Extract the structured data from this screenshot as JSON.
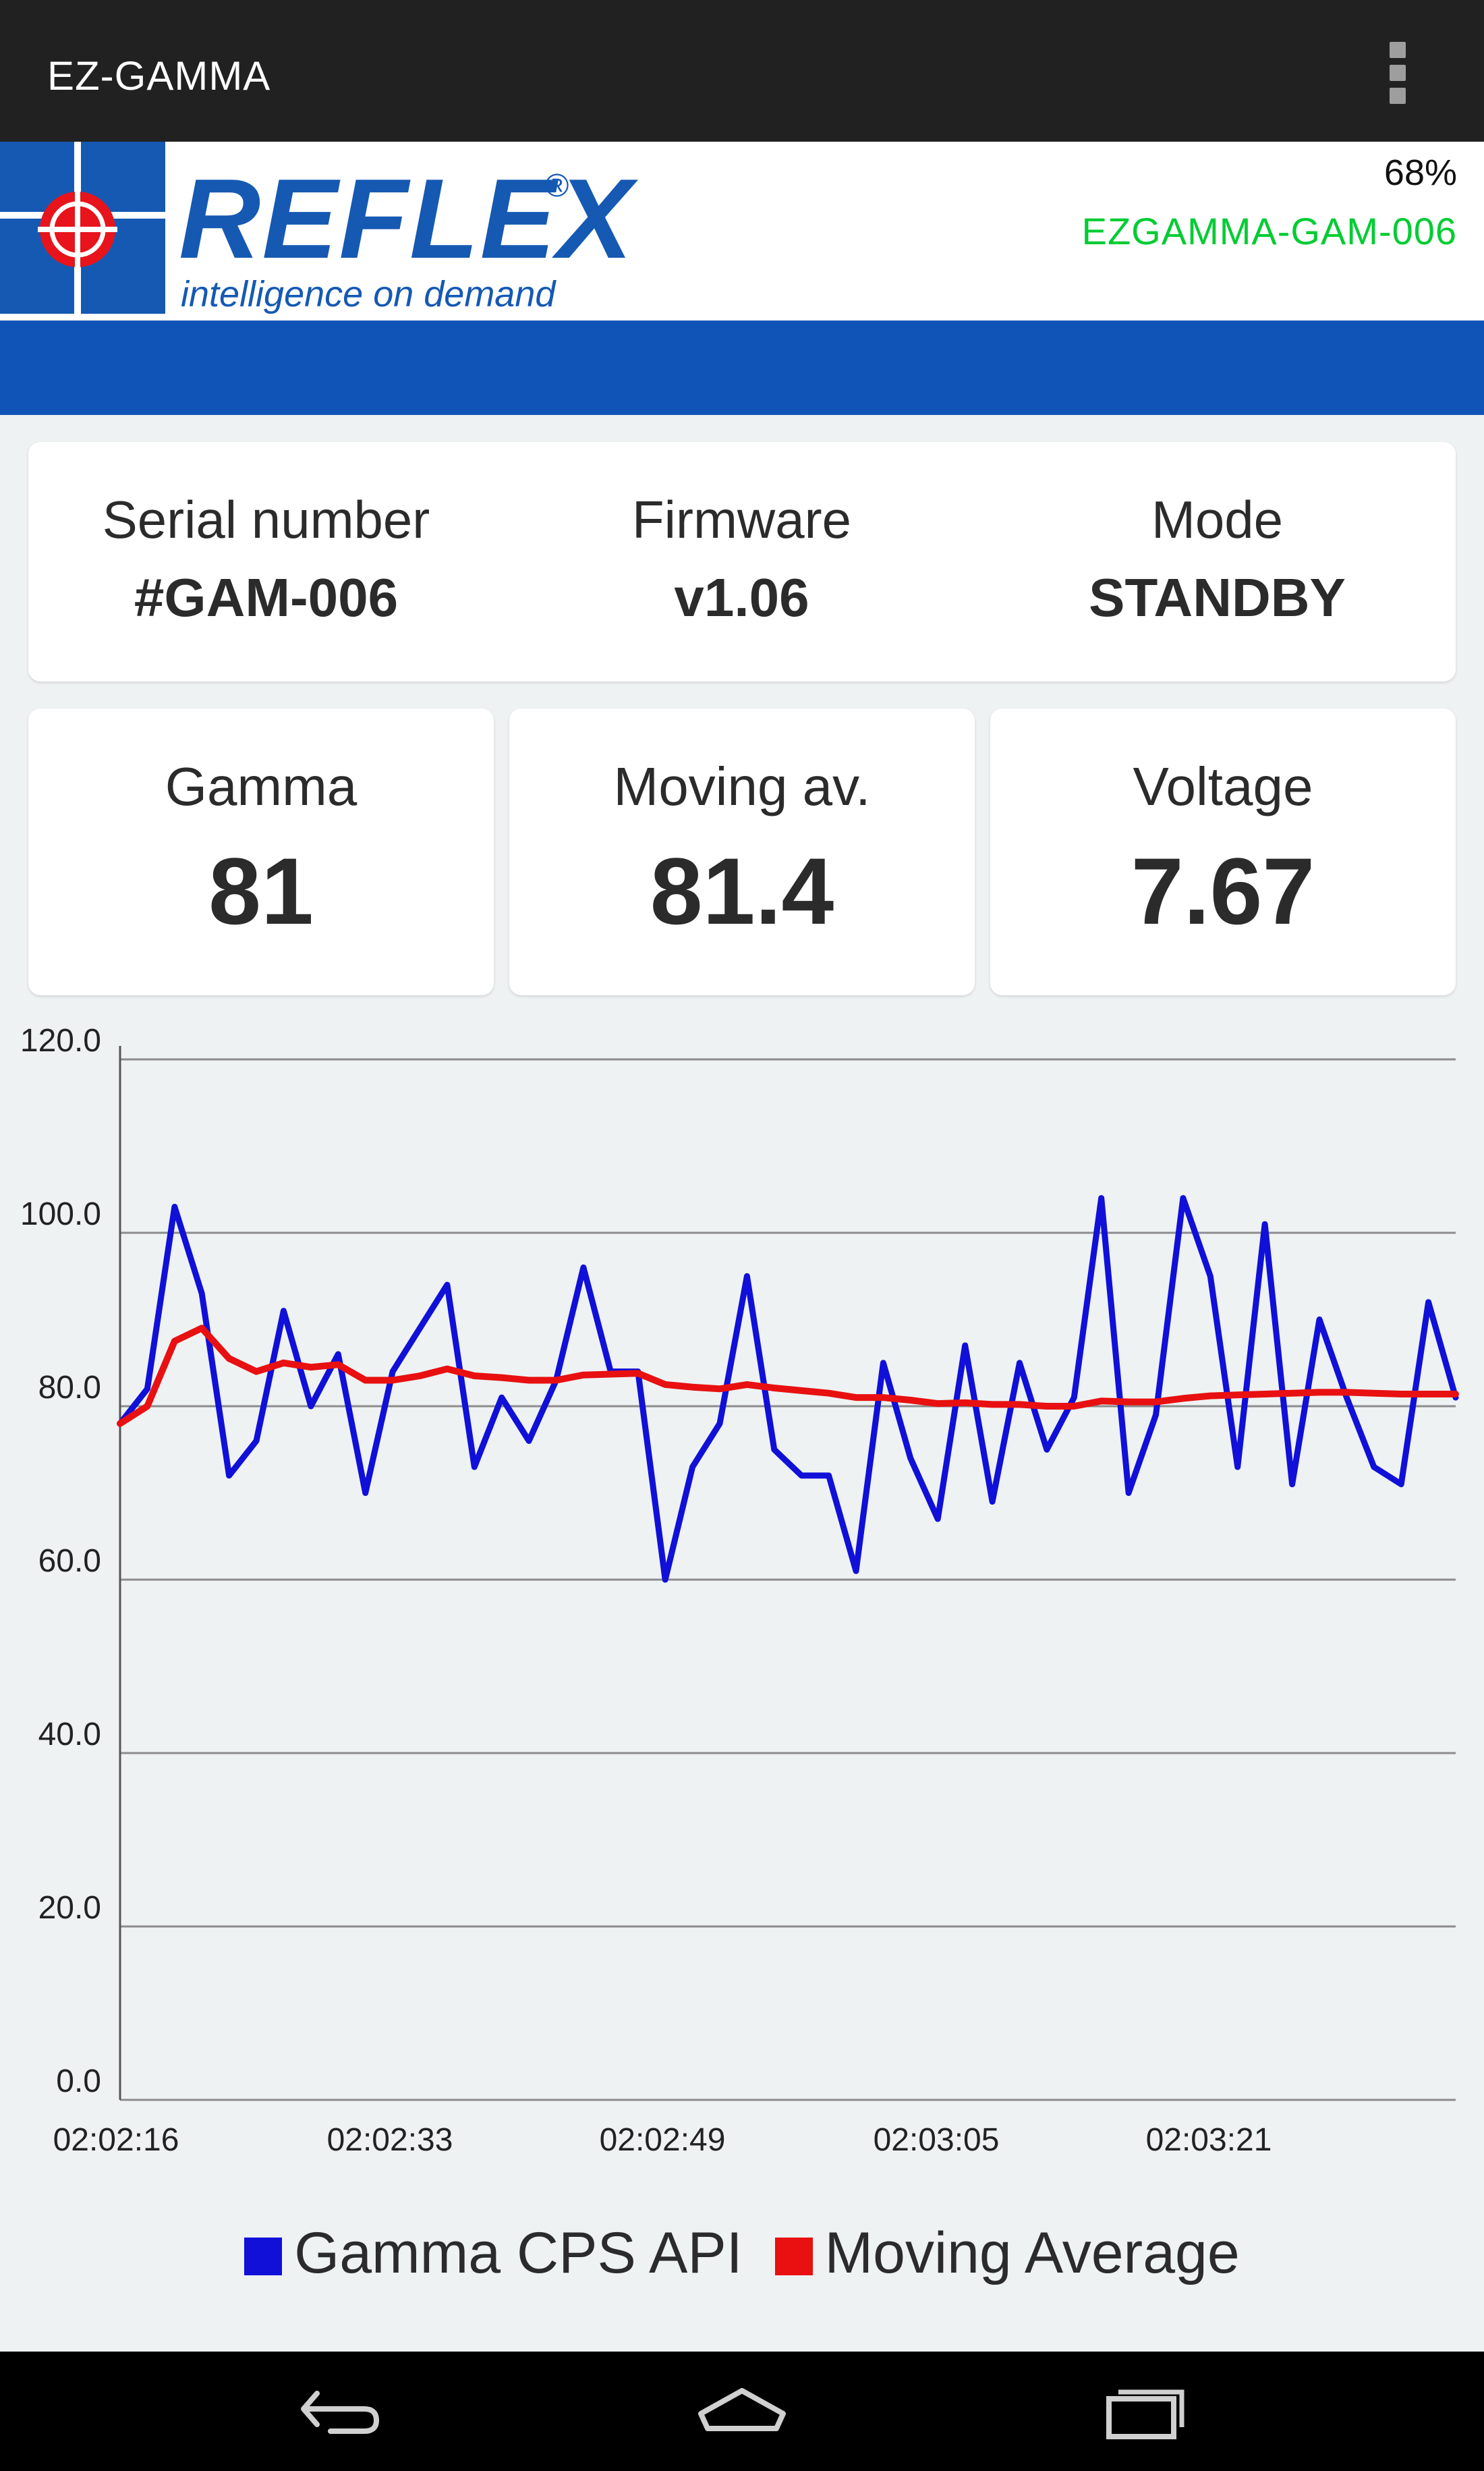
{
  "appbar": {
    "title": "EZ-GAMMA",
    "menu_icon": "overflow-menu-icon"
  },
  "brand": {
    "logo_text": "REFLEX",
    "logo_reg": "®",
    "tagline": "intelligence on demand",
    "battery": "68%",
    "device_name": "EZGAMMA-GAM-006",
    "colors": {
      "logo_blue": "#1559b3",
      "band_blue": "#1154b8",
      "device_green": "#00cc33"
    }
  },
  "info": [
    {
      "label": "Serial number",
      "value": "#GAM-006"
    },
    {
      "label": "Firmware",
      "value": "v1.06"
    },
    {
      "label": "Mode",
      "value": "STANDBY"
    }
  ],
  "metrics": [
    {
      "label": "Gamma",
      "value": "81"
    },
    {
      "label": "Moving av.",
      "value": "81.4"
    },
    {
      "label": "Voltage",
      "value": "7.67"
    }
  ],
  "chart_data": {
    "type": "line",
    "ylim": [
      0,
      120
    ],
    "yticks": [
      "0.0",
      "20.0",
      "40.0",
      "60.0",
      "80.0",
      "100.0",
      "120.0"
    ],
    "xticks": [
      "02:02:16",
      "02:02:33",
      "02:02:49",
      "02:03:05",
      "02:03:21"
    ],
    "grid": true,
    "legend_position": "bottom",
    "series": [
      {
        "name": "Gamma CPS API",
        "color": "#1010d8",
        "values": [
          78,
          82,
          103,
          93,
          72,
          76,
          91,
          80,
          86,
          70,
          84,
          89,
          94,
          73,
          81,
          76,
          83,
          96,
          84,
          84,
          60,
          73,
          78,
          95,
          75,
          72,
          72,
          61,
          85,
          74,
          67,
          87,
          69,
          85,
          75,
          81,
          104,
          70,
          79,
          104,
          95,
          73,
          101,
          71,
          90,
          81,
          73,
          71,
          92,
          81
        ]
      },
      {
        "name": "Moving Average",
        "color": "#e81010",
        "values": [
          78,
          80,
          87.5,
          89,
          85.5,
          84,
          85,
          84.5,
          84.8,
          83,
          83,
          83.5,
          84.3,
          83.5,
          83.3,
          83,
          83,
          83.6,
          83.7,
          83.8,
          82.5,
          82.2,
          82,
          82.5,
          82.1,
          81.8,
          81.5,
          81,
          81,
          80.7,
          80.3,
          80.4,
          80.2,
          80.2,
          80,
          80,
          80.6,
          80.5,
          80.5,
          80.9,
          81.2,
          81.3,
          81.4,
          81.5,
          81.6,
          81.6,
          81.5,
          81.4,
          81.4,
          81.4
        ]
      }
    ]
  },
  "nav": {
    "back_icon": "back-icon",
    "home_icon": "home-icon",
    "recents_icon": "recents-icon"
  }
}
